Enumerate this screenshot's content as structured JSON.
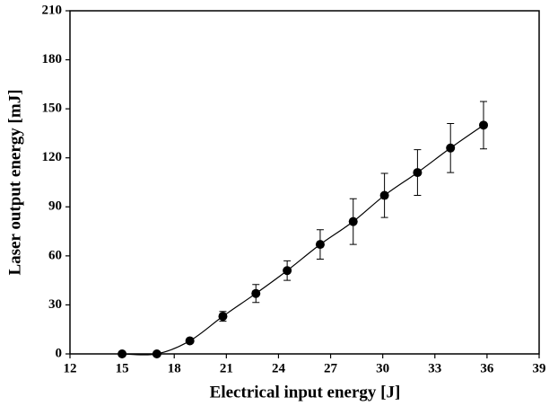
{
  "chart_data": {
    "type": "scatter",
    "x_label": "Electrical input energy [J]",
    "y_label": "Laser output energy [mJ]",
    "x": [
      15.0,
      17.0,
      18.9,
      20.8,
      22.7,
      24.5,
      26.4,
      28.3,
      30.1,
      32.0,
      33.9,
      35.8
    ],
    "series": [
      {
        "color": "#000000",
        "values": [
          0,
          0,
          8,
          23,
          37,
          51,
          67,
          81,
          97,
          111,
          126,
          140
        ],
        "errors": [
          0,
          0,
          1,
          3,
          5.5,
          6,
          9,
          14,
          13.5,
          14,
          15,
          14.5
        ]
      }
    ],
    "xlim": [
      12,
      39
    ],
    "xticks": [
      12,
      15,
      18,
      21,
      24,
      27,
      30,
      33,
      36,
      39
    ],
    "ylim": [
      0,
      210
    ],
    "yticks": [
      0,
      30,
      60,
      90,
      120,
      150,
      180,
      210
    ]
  }
}
